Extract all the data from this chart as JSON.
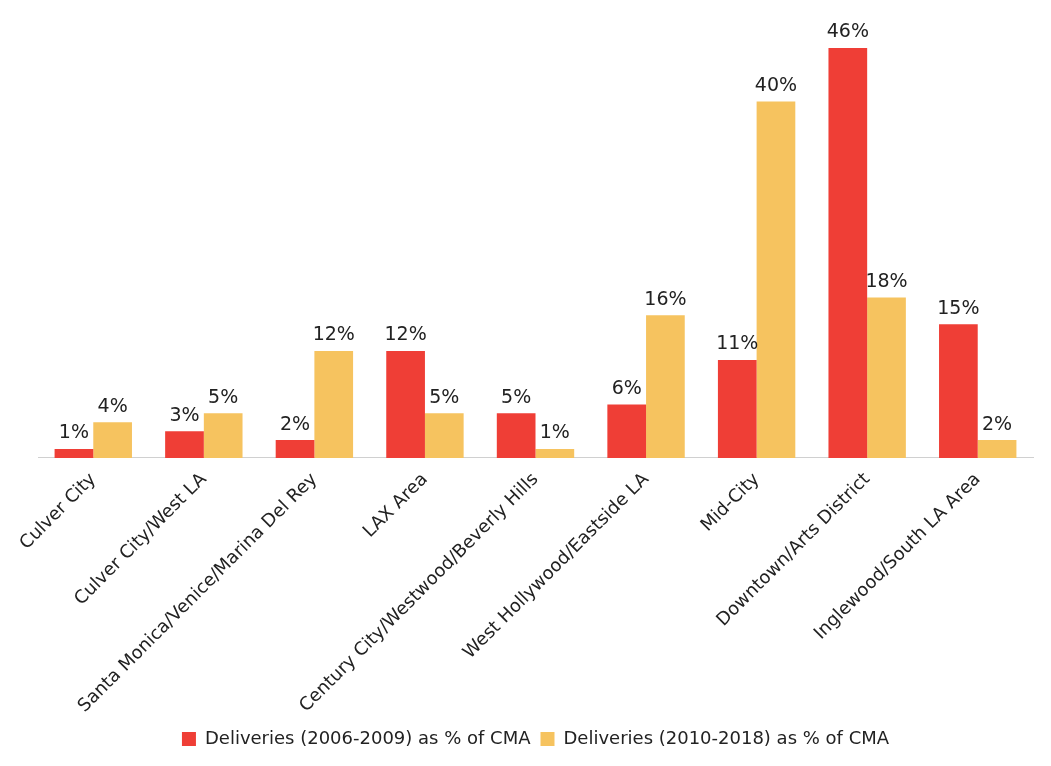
{
  "chart_data": {
    "type": "bar",
    "categories": [
      "Culver City",
      "Culver City/West LA",
      "Santa Monica/Venice/Marina Del Rey",
      "LAX Area",
      "Century City/Westwood/Beverly Hills",
      "West Hollywood/Eastside LA",
      "Mid-City",
      "Downtown/Arts District",
      "Inglewood/South LA Area"
    ],
    "series": [
      {
        "name": "Deliveries (2006-2009) as % of CMA",
        "color": "#ef3e36",
        "values": [
          1,
          3,
          2,
          12,
          5,
          6,
          11,
          46,
          15
        ],
        "value_labels": [
          "1%",
          "3%",
          "2%",
          "12%",
          "5%",
          "6%",
          "11%",
          "46%",
          "15%"
        ]
      },
      {
        "name": "Deliveries (2010-2018) as % of CMA",
        "color": "#f6c35f",
        "values": [
          4,
          5,
          12,
          5,
          1,
          16,
          40,
          18,
          2
        ],
        "value_labels": [
          "4%",
          "5%",
          "12%",
          "5%",
          "1%",
          "16%",
          "40%",
          "18%",
          "2%"
        ]
      }
    ],
    "ylim": [
      0,
      46
    ],
    "tick_labels": "x",
    "grid": false,
    "legend": "bottom"
  }
}
